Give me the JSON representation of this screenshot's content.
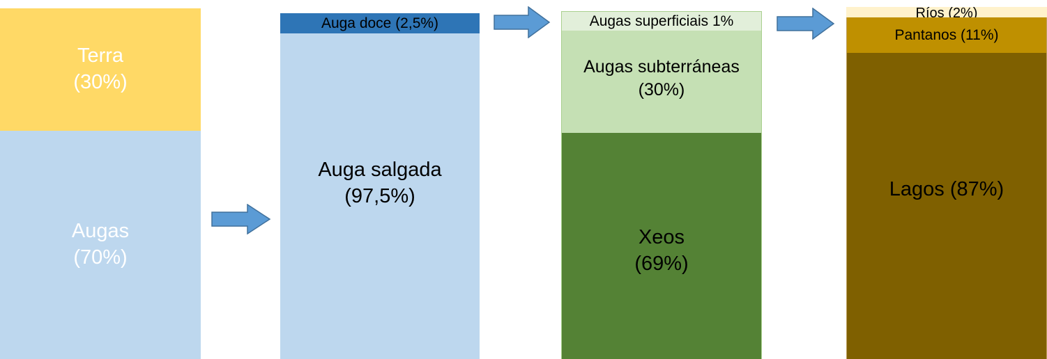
{
  "colors": {
    "terra": "#ffd966",
    "augas": "#bdd7ee",
    "auga_doce": "#2e75b6",
    "auga_salgada": "#bdd7ee",
    "augas_superficiais": "#e2efda",
    "augas_subterraneas": "#c5e0b4",
    "xeos": "#548235",
    "rios": "#fff2cc",
    "pantanos": "#bf9000",
    "lagos": "#7f6000",
    "arrow_fill": "#5b9bd5",
    "arrow_stroke": "#41719c"
  },
  "icons": [
    "right-arrow-icon",
    "right-arrow-icon",
    "right-arrow-icon"
  ],
  "columns": [
    {
      "segments": [
        {
          "label": "Terra\n(30%)",
          "percent": 30
        },
        {
          "label": "Augas\n(70%)",
          "percent": 70
        }
      ]
    },
    {
      "segments": [
        {
          "label": "Auga doce (2,5%)",
          "percent": 2.5
        },
        {
          "label": "Auga salgada\n(97,5%)",
          "percent": 97.5
        }
      ]
    },
    {
      "segments": [
        {
          "label": "Augas superficiais 1%",
          "percent": 1
        },
        {
          "label": "Augas subterráneas\n(30%)",
          "percent": 30
        },
        {
          "label": "Xeos\n(69%)",
          "percent": 69
        }
      ]
    },
    {
      "segments": [
        {
          "label": "Ríos (2%)",
          "percent": 2
        },
        {
          "label": "Pantanos (11%)",
          "percent": 11
        },
        {
          "label": "Lagos (87%)",
          "percent": 87
        }
      ]
    }
  ]
}
